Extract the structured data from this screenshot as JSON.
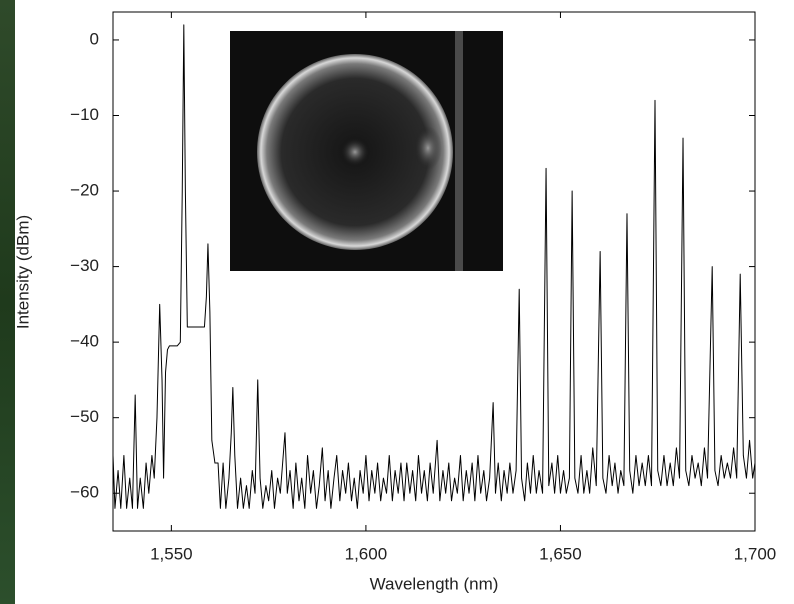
{
  "chart_data": {
    "type": "line",
    "x_label": "Wavelength (nm)",
    "y_label": "Intensity (dBm)",
    "color": "#000000",
    "xlim": [
      1535,
      1700
    ],
    "ylim": [
      -65,
      3.7
    ],
    "xticks": [
      {
        "value": 1550,
        "label": "1,550"
      },
      {
        "value": 1600,
        "label": "1,600"
      },
      {
        "value": 1650,
        "label": "1,650"
      },
      {
        "value": 1700,
        "label": "1,700"
      }
    ],
    "yticks": [
      0,
      {
        "value": -10,
        "label": "−10"
      },
      {
        "value": -20,
        "label": "−20"
      },
      {
        "value": -30,
        "label": "−30"
      },
      {
        "value": -40,
        "label": "−40"
      },
      {
        "value": -50,
        "label": "−50"
      },
      {
        "value": -60,
        "label": "−60"
      }
    ],
    "x": [
      1535,
      1535.5,
      1536.3,
      1537,
      1537.8,
      1538.5,
      1539.3,
      1540,
      1540.7,
      1541.3,
      1542,
      1542.8,
      1543.5,
      1544.2,
      1545,
      1545.6,
      1546.3,
      1547,
      1547.6,
      1548,
      1548.5,
      1549,
      1549.5,
      1551.5,
      1552.3,
      1552.8,
      1553.2,
      1553.6,
      1554.1,
      1558.5,
      1559,
      1559.4,
      1559.9,
      1560.4,
      1561.2,
      1562,
      1562.6,
      1563.3,
      1564,
      1564.8,
      1565.4,
      1565.8,
      1566.3,
      1567,
      1567.8,
      1568.5,
      1569.3,
      1570,
      1570.8,
      1571.5,
      1572.2,
      1572.8,
      1573.5,
      1574.3,
      1575,
      1575.8,
      1576.5,
      1577.3,
      1578,
      1578.6,
      1579.2,
      1579.8,
      1580.5,
      1581.3,
      1582,
      1582.8,
      1583.5,
      1584.3,
      1585,
      1585.8,
      1586.5,
      1587.3,
      1588,
      1588.8,
      1589.5,
      1590.3,
      1591,
      1591.8,
      1592.5,
      1593.3,
      1594,
      1594.8,
      1595.5,
      1596.3,
      1597,
      1597.8,
      1598.5,
      1599.3,
      1600,
      1600.8,
      1601.5,
      1602.3,
      1603,
      1603.8,
      1604.5,
      1605.3,
      1606,
      1606.8,
      1607.5,
      1608.3,
      1609,
      1609.8,
      1610.5,
      1611.3,
      1612,
      1612.8,
      1613.5,
      1614.3,
      1615,
      1615.8,
      1616.5,
      1617.3,
      1618.3,
      1619,
      1619.8,
      1620.5,
      1621.3,
      1622,
      1622.8,
      1623.5,
      1624.3,
      1625,
      1625.8,
      1626.5,
      1627.3,
      1628,
      1628.8,
      1629.5,
      1630.3,
      1631,
      1631.8,
      1632.7,
      1633.3,
      1634,
      1634.8,
      1635.5,
      1636.3,
      1637,
      1637.8,
      1638.6,
      1639.4,
      1640,
      1640.8,
      1641.5,
      1642.3,
      1643,
      1643.8,
      1644.5,
      1645.4,
      1646.3,
      1647,
      1647.8,
      1648.5,
      1649.3,
      1650,
      1650.8,
      1651.5,
      1652.3,
      1653,
      1653.7,
      1654.5,
      1655.3,
      1656,
      1656.8,
      1657.5,
      1658.3,
      1659.2,
      1660.2,
      1660.9,
      1661.7,
      1662.5,
      1663.3,
      1664,
      1664.8,
      1665.5,
      1666.3,
      1667.1,
      1667.8,
      1668.6,
      1669.4,
      1670.2,
      1671,
      1671.8,
      1672.6,
      1673.4,
      1674.3,
      1675,
      1675.8,
      1676.6,
      1677.4,
      1678.2,
      1679,
      1679.8,
      1680.6,
      1681.5,
      1682.2,
      1683,
      1683.8,
      1684.6,
      1685.4,
      1686.2,
      1687,
      1687.8,
      1689,
      1689.7,
      1690.5,
      1691.3,
      1692.1,
      1692.9,
      1693.7,
      1694.5,
      1695.3,
      1696.2,
      1697,
      1697.8,
      1698.6,
      1699.4,
      1700
    ],
    "values": [
      -55,
      -62,
      -57,
      -62,
      -55,
      -62,
      -58,
      -62,
      -47,
      -62,
      -58,
      -62,
      -56,
      -60,
      -55,
      -58,
      -50,
      -35,
      -45,
      -58,
      -44,
      -41,
      -40.5,
      -40.5,
      -40,
      -20,
      2,
      -20,
      -38,
      -38,
      -34,
      -27,
      -36,
      -53,
      -56,
      -56,
      -62,
      -56,
      -62,
      -58,
      -52,
      -46,
      -55,
      -62,
      -58,
      -62,
      -59,
      -62,
      -57,
      -60,
      -45,
      -58,
      -62,
      -59,
      -61,
      -57,
      -62,
      -58,
      -60,
      -56,
      -52,
      -60,
      -57,
      -62,
      -56,
      -61,
      -58,
      -62,
      -55,
      -60,
      -57,
      -62,
      -59,
      -54,
      -61,
      -57,
      -62,
      -58,
      -55,
      -61,
      -57,
      -60,
      -56,
      -61,
      -58,
      -62,
      -57,
      -60,
      -55,
      -61,
      -57,
      -60,
      -56,
      -61,
      -58,
      -60,
      -55,
      -61,
      -57,
      -60,
      -56,
      -61,
      -56,
      -60,
      -57,
      -61,
      -55,
      -60,
      -57,
      -61,
      -56,
      -60,
      -53,
      -61,
      -57,
      -60,
      -56,
      -61,
      -58,
      -60,
      -55,
      -61,
      -57,
      -60,
      -56,
      -61,
      -55,
      -60,
      -57,
      -61,
      -58,
      -48,
      -60,
      -56,
      -61,
      -57,
      -60,
      -56,
      -60,
      -57,
      -33,
      -58,
      -61,
      -56,
      -60,
      -55,
      -60,
      -57,
      -60,
      -17,
      -59,
      -56,
      -60,
      -55,
      -60,
      -57,
      -60,
      -58,
      -20,
      -58,
      -60,
      -55,
      -60,
      -57,
      -60,
      -54,
      -59,
      -28,
      -58,
      -60,
      -55,
      -59,
      -56,
      -60,
      -57,
      -59,
      -23,
      -57,
      -60,
      -55,
      -59,
      -56,
      -59,
      -55,
      -59,
      -8,
      -57,
      -59,
      -55,
      -59,
      -56,
      -59,
      -54,
      -58,
      -13,
      -57,
      -59,
      -55,
      -58,
      -56,
      -59,
      -54,
      -58,
      -30,
      -57,
      -59,
      -55,
      -58,
      -56,
      -58,
      -54,
      -58,
      -31,
      -55,
      -58,
      -53,
      -58,
      -56
    ]
  }
}
